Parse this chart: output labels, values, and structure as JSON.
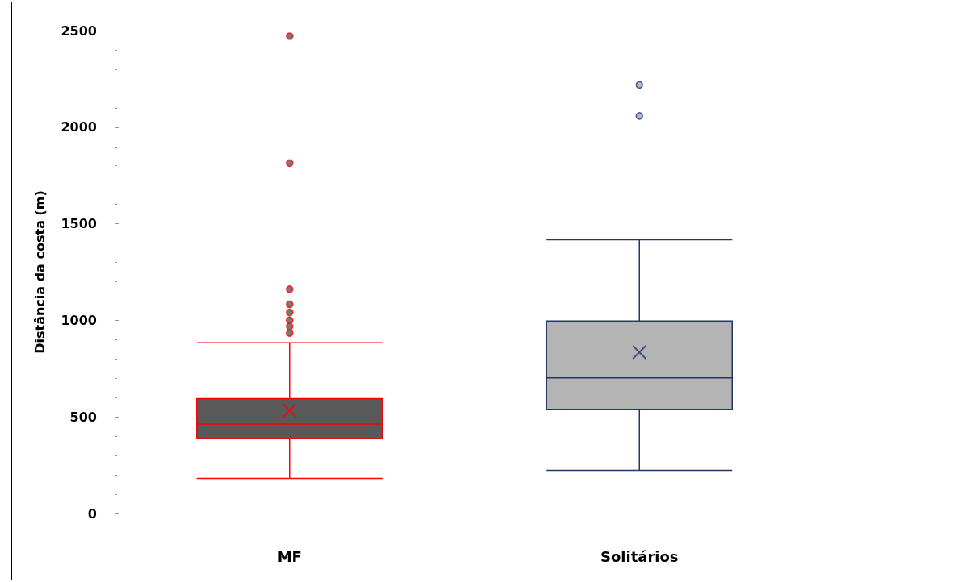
{
  "chart_data": {
    "type": "box",
    "ylabel": "Distância da costa (m)",
    "categories": [
      "MF",
      "Solitários"
    ],
    "boxes": [
      {
        "low": 182,
        "q1": 388,
        "median": 463,
        "q3": 595,
        "high": 884,
        "mean": 533,
        "outliers": [
          2471,
          1814,
          1161,
          1083,
          1041,
          1000,
          968,
          934
        ]
      },
      {
        "low": 223,
        "q1": 537,
        "median": 702,
        "q3": 996,
        "high": 1417,
        "mean": 835,
        "outliers": [
          2219,
          2058
        ]
      }
    ],
    "colors": [
      "#ff0000",
      "#1f3864"
    ],
    "ylim": [
      0,
      2500
    ],
    "yticks": [
      0,
      500,
      1000,
      1500,
      2000,
      2500
    ],
    "grid": false
  }
}
